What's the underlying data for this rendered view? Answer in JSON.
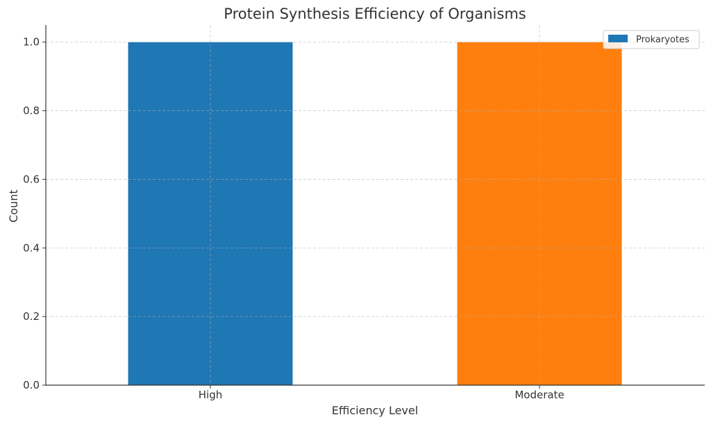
{
  "chart_data": {
    "type": "bar",
    "title": "Protein Synthesis Efficiency of Organisms",
    "xlabel": "Efficiency Level",
    "ylabel": "Count",
    "categories": [
      "High",
      "Moderate"
    ],
    "values": [
      1.0,
      1.0
    ],
    "bar_colors": [
      "#1f77b4",
      "#ff7f0e"
    ],
    "ylim": [
      0,
      1.05
    ],
    "yticks": [
      "0.0",
      "0.2",
      "0.4",
      "0.6",
      "0.8",
      "1.0"
    ],
    "grid": true,
    "legend": {
      "placement": "top-right",
      "entries": [
        {
          "label": "Prokaryotes",
          "color": "#1f77b4"
        }
      ]
    }
  }
}
